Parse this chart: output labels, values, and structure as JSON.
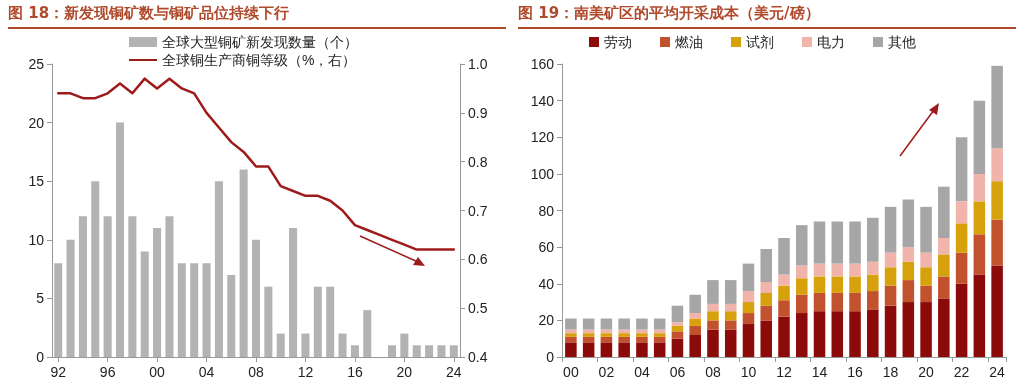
{
  "chart_data": [
    {
      "type": "bar",
      "title": "图 18：新发现铜矿数与铜矿品位持续下行",
      "categories": [
        "92",
        null,
        null,
        null,
        "96",
        null,
        null,
        null,
        "00",
        null,
        null,
        null,
        "04",
        null,
        null,
        null,
        "08",
        null,
        null,
        null,
        "12",
        null,
        null,
        null,
        "16",
        null,
        null,
        null,
        "20",
        null,
        null,
        null,
        "24"
      ],
      "series": [
        {
          "name": "全球大型铜矿新发现数量（个）",
          "type": "bar",
          "color": "#b3b3b3",
          "values": [
            8,
            10,
            12,
            15,
            12,
            20,
            12,
            9,
            11,
            12,
            8,
            8,
            8,
            15,
            7,
            16,
            10,
            6,
            2,
            11,
            2,
            6,
            6,
            2,
            1,
            4,
            0,
            1,
            2,
            1,
            1,
            1,
            1
          ]
        },
        {
          "name": "全球铜生产商铜等级（%，右）",
          "type": "line",
          "axis": "y2",
          "color": "#9e1b1b",
          "values": [
            0.94,
            0.94,
            0.93,
            0.93,
            0.94,
            0.96,
            0.94,
            0.97,
            0.95,
            0.97,
            0.95,
            0.94,
            0.9,
            0.87,
            0.84,
            0.82,
            0.79,
            0.79,
            0.75,
            0.74,
            0.73,
            0.73,
            0.72,
            0.7,
            0.67,
            0.66,
            0.65,
            0.64,
            0.63,
            0.62,
            0.62,
            0.62,
            0.62
          ]
        }
      ],
      "ylim": [
        0,
        25
      ],
      "yticks": [
        0,
        5,
        10,
        15,
        20,
        25
      ],
      "y2lim": [
        0.4,
        1
      ],
      "y2ticks": [
        0.4,
        0.5,
        0.6,
        0.7,
        0.8,
        0.9,
        {
          "value": 1,
          "label": "1.0"
        }
      ],
      "marker": "none",
      "legend": "top",
      "grid": false
    },
    {
      "type": "bar",
      "title": "图 19：南美矿区的平均开采成本（美元/磅）",
      "stacked": true,
      "categories": [
        "00",
        null,
        "02",
        null,
        "04",
        null,
        "06",
        null,
        "08",
        null,
        "10",
        null,
        "12",
        null,
        "14",
        null,
        "16",
        null,
        "18",
        null,
        "20",
        null,
        "22",
        null,
        "24"
      ],
      "series": [
        {
          "name": "劳动",
          "color": "#8b0a0a",
          "values": [
            8,
            8,
            8,
            8,
            8,
            8,
            10,
            12,
            15,
            15,
            18,
            20,
            22,
            24,
            25,
            25,
            25,
            26,
            28,
            30,
            30,
            32,
            40,
            45,
            50
          ]
        },
        {
          "name": "燃油",
          "color": "#c2522d",
          "values": [
            3,
            3,
            3,
            3,
            3,
            3,
            4,
            5,
            5,
            5,
            6,
            8,
            9,
            10,
            10,
            10,
            10,
            10,
            11,
            12,
            9,
            12,
            17,
            22,
            25
          ]
        },
        {
          "name": "试剂",
          "color": "#d6a10a",
          "values": [
            2,
            2,
            2,
            2,
            2,
            2,
            3,
            4,
            5,
            5,
            6,
            7,
            8,
            9,
            9,
            9,
            9,
            9,
            10,
            10,
            10,
            12,
            16,
            18,
            21
          ]
        },
        {
          "name": "电力",
          "color": "#f0b4aa",
          "values": [
            2,
            2,
            2,
            2,
            2,
            2,
            2,
            3,
            4,
            4,
            6,
            6,
            6,
            7,
            7,
            7,
            7,
            7,
            8,
            8,
            8,
            9,
            12,
            15,
            18
          ]
        },
        {
          "name": "其他",
          "color": "#a6a6a6",
          "values": [
            6,
            6,
            6,
            6,
            6,
            6,
            9,
            10,
            13,
            13,
            15,
            18,
            20,
            22,
            23,
            23,
            23,
            24,
            25,
            26,
            25,
            28,
            35,
            40,
            45
          ]
        }
      ],
      "ylim": [
        0,
        160
      ],
      "yticks": [
        0,
        20,
        40,
        60,
        80,
        100,
        120,
        140,
        160
      ],
      "legend": "top",
      "grid": false
    }
  ]
}
